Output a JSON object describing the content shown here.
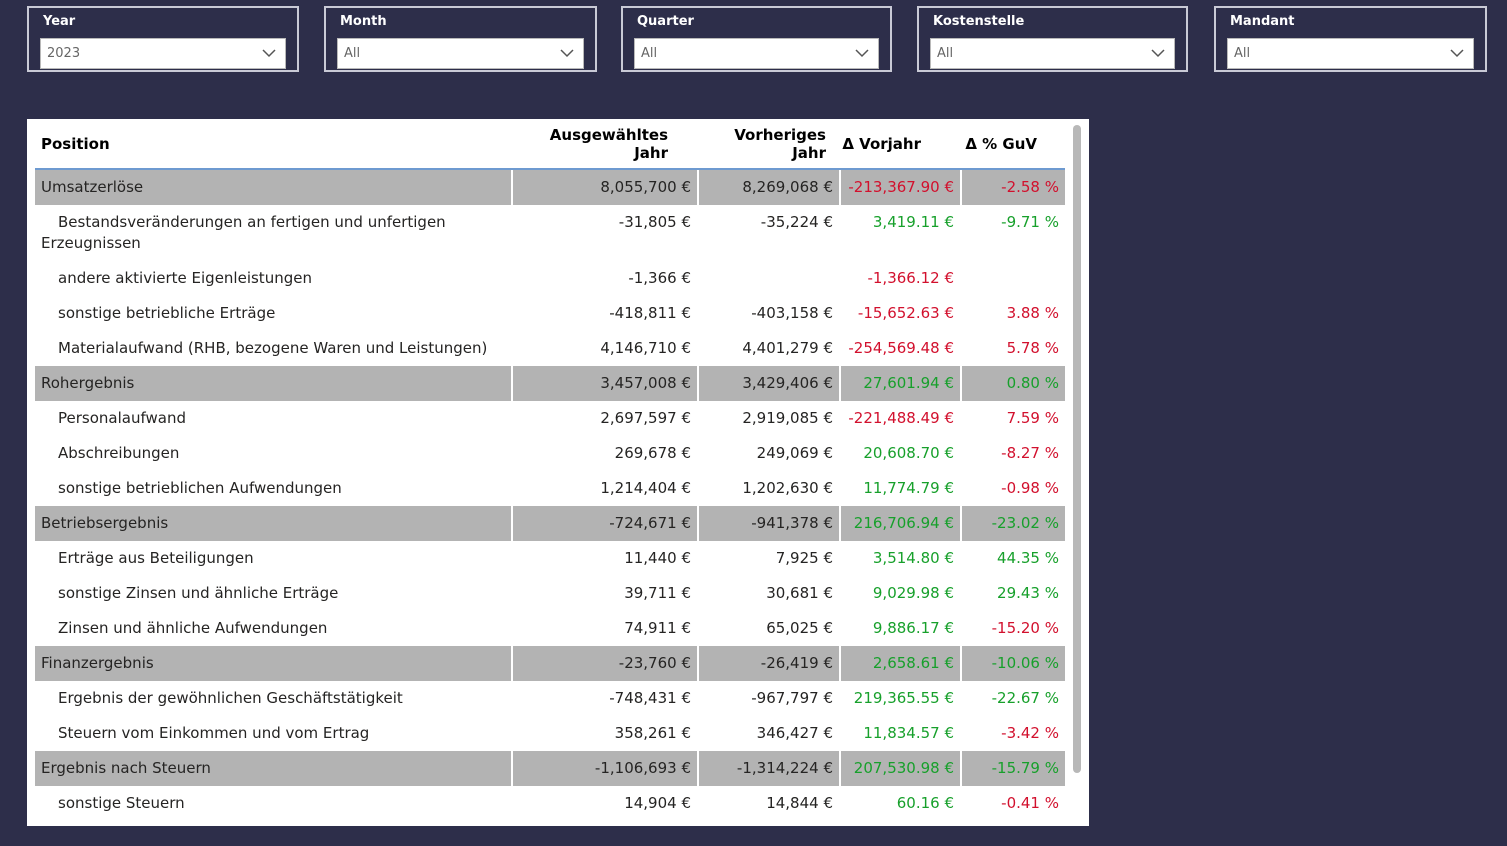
{
  "slicers": [
    {
      "title": "Year",
      "value": "2023"
    },
    {
      "title": "Month",
      "value": "All"
    },
    {
      "title": "Quarter",
      "value": "All"
    },
    {
      "title": "Kostenstelle",
      "value": "All"
    },
    {
      "title": "Mandant",
      "value": "All"
    }
  ],
  "table": {
    "headers": {
      "position": "Position",
      "selected_year": "Ausgewähltes Jahr",
      "previous_year": "Vorheriges Jahr",
      "delta_prev": "Δ Vorjahr",
      "delta_pct": "Δ % GuV"
    },
    "rows": [
      {
        "type": "subtotal",
        "position": "Umsatzerlöse",
        "selected": "8,055,700 €",
        "previous": "8,269,068 €",
        "delta": "-213,367.90 €",
        "delta_sign": "neg",
        "pct": "-2.58 %",
        "pct_sign": "neg"
      },
      {
        "type": "normal",
        "position": "Bestandsveränderungen an fertigen und unfertigen Erzeugnissen",
        "selected": "-31,805 €",
        "previous": "-35,224 €",
        "delta": "3,419.11 €",
        "delta_sign": "pos",
        "pct": "-9.71 %",
        "pct_sign": "pos"
      },
      {
        "type": "normal",
        "position": "andere aktivierte Eigenleistungen",
        "selected": "-1,366 €",
        "previous": "",
        "delta": "-1,366.12 €",
        "delta_sign": "neg",
        "pct": "",
        "pct_sign": "neg"
      },
      {
        "type": "normal",
        "position": "sonstige betriebliche Erträge",
        "selected": "-418,811 €",
        "previous": "-403,158 €",
        "delta": "-15,652.63 €",
        "delta_sign": "neg",
        "pct": "3.88 %",
        "pct_sign": "neg"
      },
      {
        "type": "normal",
        "position": "Materialaufwand (RHB, bezogene Waren und Leistungen)",
        "selected": "4,146,710 €",
        "previous": "4,401,279 €",
        "delta": "-254,569.48 €",
        "delta_sign": "neg",
        "pct": "5.78 %",
        "pct_sign": "neg"
      },
      {
        "type": "subtotal",
        "position": "Rohergebnis",
        "selected": "3,457,008 €",
        "previous": "3,429,406 €",
        "delta": "27,601.94 €",
        "delta_sign": "pos",
        "pct": "0.80 %",
        "pct_sign": "pos"
      },
      {
        "type": "normal",
        "position": "Personalaufwand",
        "selected": "2,697,597 €",
        "previous": "2,919,085 €",
        "delta": "-221,488.49 €",
        "delta_sign": "neg",
        "pct": "7.59 %",
        "pct_sign": "neg"
      },
      {
        "type": "normal",
        "position": "Abschreibungen",
        "selected": "269,678 €",
        "previous": "249,069 €",
        "delta": "20,608.70 €",
        "delta_sign": "pos",
        "pct": "-8.27 %",
        "pct_sign": "neg"
      },
      {
        "type": "normal",
        "position": "sonstige betrieblichen Aufwendungen",
        "selected": "1,214,404 €",
        "previous": "1,202,630 €",
        "delta": "11,774.79 €",
        "delta_sign": "pos",
        "pct": "-0.98 %",
        "pct_sign": "neg"
      },
      {
        "type": "subtotal",
        "position": "Betriebsergebnis",
        "selected": "-724,671 €",
        "previous": "-941,378 €",
        "delta": "216,706.94 €",
        "delta_sign": "pos",
        "pct": "-23.02 %",
        "pct_sign": "pos"
      },
      {
        "type": "normal",
        "position": "Erträge aus Beteiligungen",
        "selected": "11,440 €",
        "previous": "7,925 €",
        "delta": "3,514.80 €",
        "delta_sign": "pos",
        "pct": "44.35 %",
        "pct_sign": "pos"
      },
      {
        "type": "normal",
        "position": "sonstige Zinsen und ähnliche Erträge",
        "selected": "39,711 €",
        "previous": "30,681 €",
        "delta": "9,029.98 €",
        "delta_sign": "pos",
        "pct": "29.43 %",
        "pct_sign": "pos"
      },
      {
        "type": "normal",
        "position": "Zinsen und ähnliche Aufwendungen",
        "selected": "74,911 €",
        "previous": "65,025 €",
        "delta": "9,886.17 €",
        "delta_sign": "pos",
        "pct": "-15.20 %",
        "pct_sign": "neg"
      },
      {
        "type": "subtotal",
        "position": "Finanzergebnis",
        "selected": "-23,760 €",
        "previous": "-26,419 €",
        "delta": "2,658.61 €",
        "delta_sign": "pos",
        "pct": "-10.06 %",
        "pct_sign": "pos"
      },
      {
        "type": "normal",
        "position": "Ergebnis der gewöhnlichen Geschäftstätigkeit",
        "selected": "-748,431 €",
        "previous": "-967,797 €",
        "delta": "219,365.55 €",
        "delta_sign": "pos",
        "pct": "-22.67 %",
        "pct_sign": "pos"
      },
      {
        "type": "normal",
        "position": "Steuern vom Einkommen und vom Ertrag",
        "selected": "358,261 €",
        "previous": "346,427 €",
        "delta": "11,834.57 €",
        "delta_sign": "pos",
        "pct": "-3.42 %",
        "pct_sign": "neg"
      },
      {
        "type": "subtotal",
        "position": "Ergebnis nach Steuern",
        "selected": "-1,106,693 €",
        "previous": "-1,314,224 €",
        "delta": "207,530.98 €",
        "delta_sign": "pos",
        "pct": "-15.79 %",
        "pct_sign": "pos"
      },
      {
        "type": "normal",
        "position": "sonstige Steuern",
        "selected": "14,904 €",
        "previous": "14,844 €",
        "delta": "60.16 €",
        "delta_sign": "pos",
        "pct": "-0.41 %",
        "pct_sign": "neg"
      }
    ]
  },
  "colors": {
    "background": "#2d2e4a",
    "subtotal_row": "#b3b3b3",
    "positive": "#17a02b",
    "negative": "#d2102d"
  }
}
